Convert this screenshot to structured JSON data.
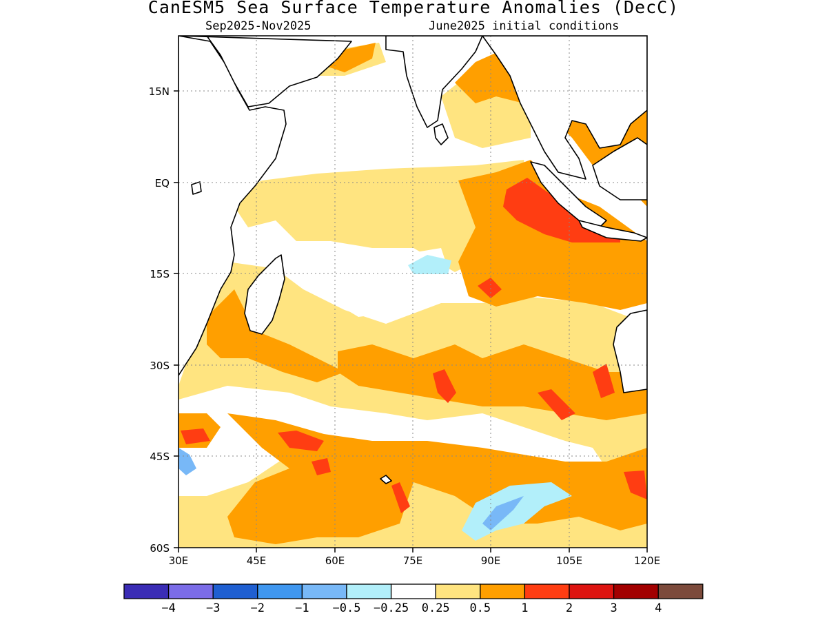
{
  "title": "CanESM5 Sea Surface Temperature Anomalies (DecC)",
  "subtitle_left": "Sep2025-Nov2025",
  "subtitle_right": "June2025 initial conditions",
  "map": {
    "lon_range": [
      30,
      120
    ],
    "lat_range": [
      -60,
      24
    ],
    "lon_ticks": [
      "30E",
      "45E",
      "60E",
      "75E",
      "90E",
      "105E",
      "120E"
    ],
    "lat_ticks": [
      "15N",
      "EQ",
      "15S",
      "30S",
      "45S",
      "60S"
    ],
    "grid": "dotted"
  },
  "colorbar": {
    "colors": [
      "#3a2cb5",
      "#7b6ce8",
      "#1f5fd1",
      "#3f97f0",
      "#78b8f7",
      "#b2effa",
      "#ffffff",
      "#ffe480",
      "#ff9f00",
      "#ff3d12",
      "#dd1410",
      "#a20000",
      "#7c4a3b"
    ],
    "labels": [
      "-4",
      "-3",
      "-2",
      "-1",
      "-0.5",
      "-0.25",
      "0.25",
      "0.5",
      "1",
      "2",
      "3",
      "4"
    ]
  },
  "legend_colors": {
    "weak_warm": "#ffe480",
    "warm": "#ff9f00",
    "strong_warm": "#ff3d12",
    "weak_cool": "#b2effa",
    "cool": "#78b8f7",
    "land": "#ffffff"
  }
}
